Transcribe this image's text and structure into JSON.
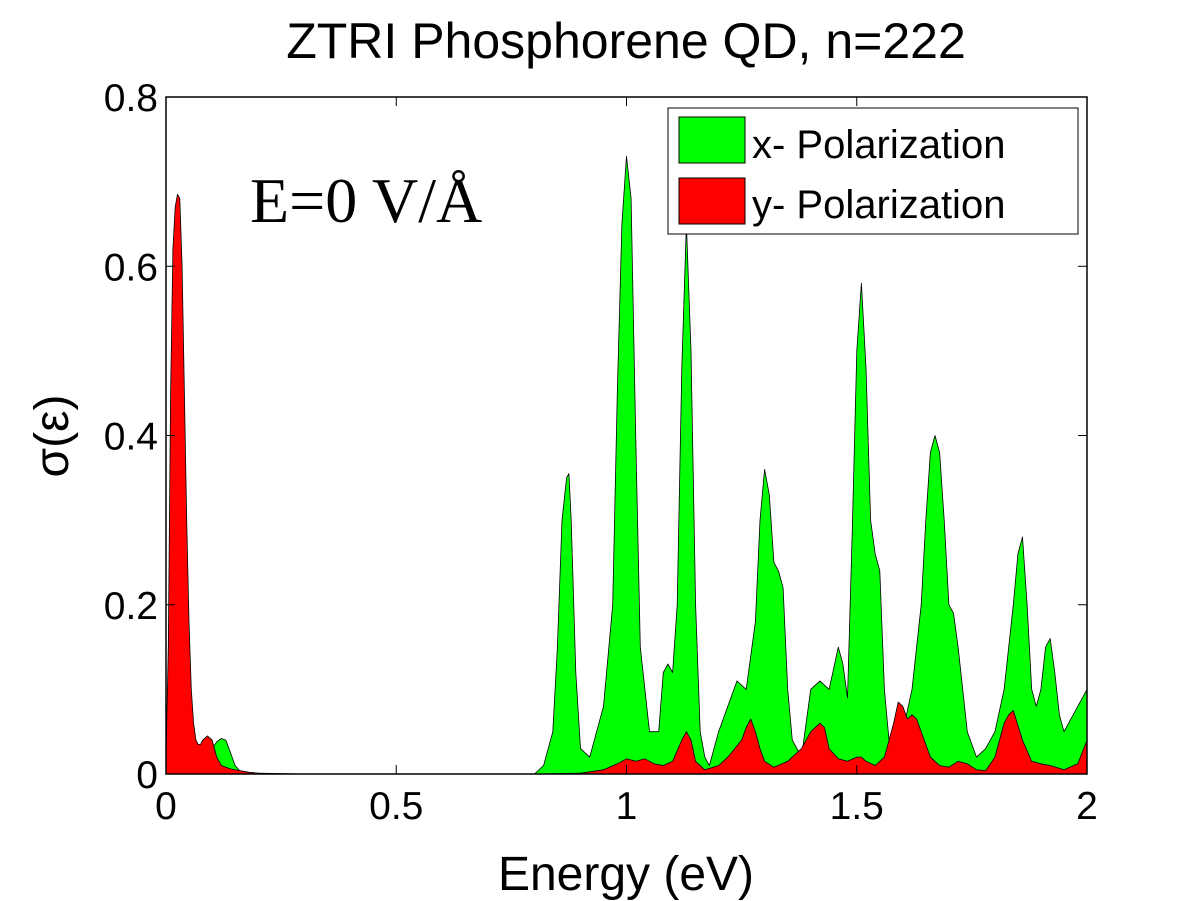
{
  "chart_data": {
    "type": "area",
    "title": "ZTRI Phosphorene QD, n=222",
    "xlabel": "Energy (eV)",
    "ylabel": "σ(ε)",
    "xlim": [
      0,
      2
    ],
    "ylim": [
      0,
      0.8
    ],
    "xticks": [
      0,
      0.5,
      1,
      1.5,
      2
    ],
    "xtick_labels": [
      "0",
      "0.5",
      "1",
      "1.5",
      "2"
    ],
    "yticks": [
      0,
      0.2,
      0.4,
      0.6,
      0.8
    ],
    "ytick_labels": [
      "0",
      "0.2",
      "0.4",
      "0.6",
      "0.8"
    ],
    "legend_position": "top-right",
    "annotation": "E=0 V/Å",
    "colors": {
      "x": "#00ff00",
      "y": "#ff0000",
      "edge": "#000000"
    },
    "series": [
      {
        "name": "x- Polarization",
        "key": "x",
        "x": [
          0,
          0.02,
          0.04,
          0.06,
          0.08,
          0.1,
          0.11,
          0.12,
          0.13,
          0.14,
          0.15,
          0.16,
          0.18,
          0.2,
          0.3,
          0.8,
          0.82,
          0.84,
          0.85,
          0.86,
          0.87,
          0.875,
          0.88,
          0.89,
          0.9,
          0.92,
          0.95,
          0.97,
          0.98,
          0.99,
          1.0,
          1.01,
          1.02,
          1.03,
          1.05,
          1.07,
          1.08,
          1.09,
          1.1,
          1.11,
          1.12,
          1.13,
          1.14,
          1.15,
          1.16,
          1.17,
          1.18,
          1.2,
          1.22,
          1.24,
          1.26,
          1.28,
          1.29,
          1.3,
          1.31,
          1.32,
          1.33,
          1.34,
          1.35,
          1.36,
          1.38,
          1.4,
          1.42,
          1.44,
          1.46,
          1.47,
          1.48,
          1.49,
          1.5,
          1.51,
          1.52,
          1.53,
          1.54,
          1.55,
          1.56,
          1.57,
          1.58,
          1.6,
          1.62,
          1.64,
          1.65,
          1.66,
          1.67,
          1.68,
          1.69,
          1.7,
          1.71,
          1.72,
          1.74,
          1.76,
          1.78,
          1.8,
          1.82,
          1.84,
          1.85,
          1.86,
          1.87,
          1.88,
          1.89,
          1.9,
          1.91,
          1.92,
          1.93,
          1.94,
          1.95,
          1.96,
          1.97,
          1.98,
          2.0
        ],
        "values": [
          0,
          0.005,
          0.01,
          0.015,
          0.02,
          0.03,
          0.038,
          0.042,
          0.04,
          0.025,
          0.01,
          0.004,
          0.002,
          0.001,
          0,
          0,
          0.01,
          0.05,
          0.15,
          0.3,
          0.35,
          0.355,
          0.3,
          0.12,
          0.03,
          0.02,
          0.08,
          0.2,
          0.45,
          0.65,
          0.73,
          0.68,
          0.4,
          0.15,
          0.05,
          0.05,
          0.12,
          0.13,
          0.12,
          0.2,
          0.48,
          0.65,
          0.5,
          0.2,
          0.05,
          0.02,
          0.01,
          0.05,
          0.08,
          0.11,
          0.1,
          0.18,
          0.3,
          0.36,
          0.33,
          0.25,
          0.24,
          0.22,
          0.1,
          0.04,
          0.02,
          0.1,
          0.11,
          0.1,
          0.15,
          0.13,
          0.09,
          0.28,
          0.5,
          0.58,
          0.48,
          0.3,
          0.26,
          0.24,
          0.1,
          0.04,
          0.02,
          0.05,
          0.1,
          0.2,
          0.3,
          0.38,
          0.4,
          0.38,
          0.3,
          0.2,
          0.19,
          0.15,
          0.05,
          0.02,
          0.03,
          0.05,
          0.1,
          0.2,
          0.26,
          0.28,
          0.2,
          0.1,
          0.08,
          0.1,
          0.15,
          0.16,
          0.12,
          0.07,
          0.05,
          0.06,
          0.07,
          0.08,
          0.1
        ]
      },
      {
        "name": "y- Polarization",
        "key": "y",
        "x": [
          0,
          0.005,
          0.01,
          0.015,
          0.02,
          0.025,
          0.03,
          0.035,
          0.04,
          0.045,
          0.05,
          0.055,
          0.06,
          0.065,
          0.07,
          0.075,
          0.08,
          0.09,
          0.1,
          0.105,
          0.11,
          0.12,
          0.13,
          0.14,
          0.16,
          0.18,
          0.2,
          0.25,
          0.3,
          0.8,
          0.9,
          0.95,
          0.98,
          1.0,
          1.02,
          1.04,
          1.06,
          1.08,
          1.1,
          1.12,
          1.13,
          1.14,
          1.15,
          1.17,
          1.2,
          1.22,
          1.25,
          1.26,
          1.27,
          1.28,
          1.29,
          1.3,
          1.32,
          1.35,
          1.38,
          1.4,
          1.42,
          1.43,
          1.44,
          1.46,
          1.48,
          1.5,
          1.51,
          1.52,
          1.54,
          1.56,
          1.58,
          1.59,
          1.6,
          1.61,
          1.62,
          1.63,
          1.64,
          1.66,
          1.68,
          1.7,
          1.72,
          1.74,
          1.76,
          1.78,
          1.8,
          1.81,
          1.82,
          1.83,
          1.84,
          1.86,
          1.88,
          1.9,
          1.92,
          1.95,
          1.98,
          2.0
        ],
        "values": [
          0.02,
          0.15,
          0.45,
          0.62,
          0.67,
          0.685,
          0.68,
          0.6,
          0.45,
          0.3,
          0.18,
          0.1,
          0.06,
          0.04,
          0.035,
          0.035,
          0.04,
          0.045,
          0.04,
          0.03,
          0.02,
          0.01,
          0.008,
          0.006,
          0.004,
          0.002,
          0.001,
          0,
          0,
          0,
          0.001,
          0.005,
          0.012,
          0.018,
          0.015,
          0.018,
          0.012,
          0.01,
          0.015,
          0.04,
          0.05,
          0.04,
          0.015,
          0.005,
          0.01,
          0.02,
          0.04,
          0.055,
          0.065,
          0.05,
          0.03,
          0.015,
          0.008,
          0.015,
          0.03,
          0.05,
          0.06,
          0.055,
          0.03,
          0.018,
          0.015,
          0.02,
          0.02,
          0.015,
          0.01,
          0.02,
          0.06,
          0.085,
          0.08,
          0.065,
          0.07,
          0.065,
          0.05,
          0.02,
          0.01,
          0.008,
          0.015,
          0.012,
          0.005,
          0.004,
          0.02,
          0.04,
          0.06,
          0.07,
          0.075,
          0.04,
          0.015,
          0.012,
          0.01,
          0.005,
          0.012,
          0.04
        ]
      }
    ]
  }
}
